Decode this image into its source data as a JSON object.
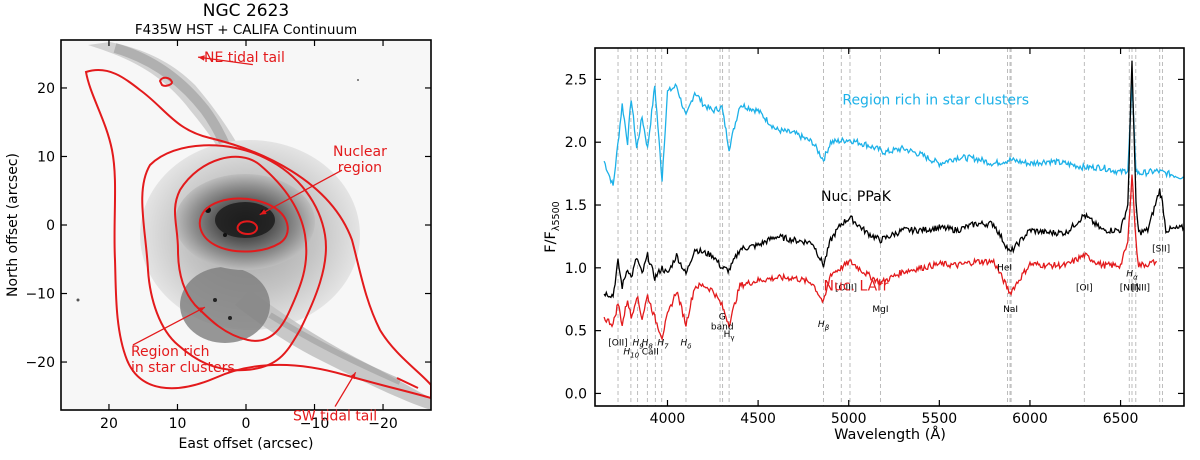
{
  "chart_data": [
    {
      "type": "image-contour",
      "title": "NGC 2623",
      "subtitle": "F435W HST + CALIFA Continuum",
      "xlabel": "East offset (arcsec)",
      "ylabel": "North offset (arcsec)",
      "xlim": [
        27,
        -27
      ],
      "ylim": [
        -27,
        27
      ],
      "xticks": [
        20,
        10,
        0,
        -10,
        -20
      ],
      "xtick_labels": [
        "20",
        "10",
        "0",
        "−10",
        "−20"
      ],
      "yticks": [
        20,
        10,
        0,
        -10,
        -20
      ],
      "ytick_labels": [
        "20",
        "10",
        "0",
        "−10",
        "−20"
      ],
      "annotations": [
        {
          "text": "NE tidal tail",
          "target": [
            7,
            24.5
          ],
          "anchor": [
            -1,
            23.4
          ]
        },
        {
          "text": "Nuclear region",
          "target": [
            -2,
            1.5
          ],
          "anchor": [
            -14,
            8
          ]
        },
        {
          "text": "Region rich in star clusters",
          "target": [
            6,
            -12
          ],
          "anchor": [
            16.5,
            -17.5
          ]
        },
        {
          "text": "SW tidal tail",
          "target": [
            -16,
            -21.5
          ],
          "anchor": [
            -13,
            -26.5
          ]
        }
      ],
      "contour_color": "#e31a1c"
    },
    {
      "type": "line",
      "xlabel": "Wavelength (Å)",
      "ylabel": "F/F",
      "ylabel_sub": "λ5500",
      "xlim": [
        3600,
        6850
      ],
      "ylim": [
        -0.1,
        2.75
      ],
      "xticks": [
        4000,
        4500,
        5000,
        5500,
        6000,
        6500
      ],
      "yticks": [
        0.0,
        0.5,
        1.0,
        1.5,
        2.0,
        2.5
      ],
      "ytick_labels": [
        "0.0",
        "0.5",
        "1.0",
        "1.5",
        "2.0",
        "2.5"
      ],
      "grid": false,
      "series": [
        {
          "name": "Region rich in star clusters",
          "color": "#1db1e8",
          "x": [
            3650,
            3700,
            3720,
            3750,
            3780,
            3800,
            3830,
            3860,
            3890,
            3930,
            3970,
            4000,
            4050,
            4102,
            4150,
            4200,
            4250,
            4300,
            4340,
            4400,
            4500,
            4600,
            4700,
            4800,
            4861,
            4900,
            5000,
            5100,
            5200,
            5300,
            5400,
            5500,
            5600,
            5700,
            5800,
            5890,
            6000,
            6100,
            6200,
            6300,
            6400,
            6500,
            6540,
            6563,
            6585,
            6600,
            6700,
            6850
          ],
          "y": [
            1.85,
            1.65,
            1.9,
            2.3,
            2.0,
            2.35,
            1.95,
            2.2,
            1.95,
            2.45,
            1.7,
            2.4,
            2.45,
            2.2,
            2.4,
            2.3,
            2.25,
            2.28,
            1.95,
            2.3,
            2.25,
            2.1,
            2.07,
            2.0,
            1.86,
            2.0,
            2.02,
            1.98,
            1.92,
            1.95,
            1.9,
            1.83,
            1.88,
            1.87,
            1.83,
            1.86,
            1.83,
            1.85,
            1.83,
            1.8,
            1.8,
            1.76,
            1.78,
            2.45,
            1.78,
            1.75,
            1.77,
            1.72
          ]
        },
        {
          "name": "Nuc. PPaK",
          "color": "#000000",
          "x": [
            3650,
            3700,
            3727,
            3750,
            3780,
            3800,
            3830,
            3860,
            3890,
            3930,
            3970,
            4000,
            4050,
            4102,
            4150,
            4200,
            4250,
            4300,
            4340,
            4400,
            4500,
            4600,
            4700,
            4800,
            4861,
            4900,
            4959,
            5007,
            5100,
            5175,
            5300,
            5400,
            5500,
            5600,
            5700,
            5800,
            5890,
            6000,
            6100,
            6200,
            6300,
            6400,
            6500,
            6540,
            6563,
            6585,
            6600,
            6650,
            6716,
            6731,
            6750,
            6850
          ],
          "y": [
            0.8,
            0.78,
            1.05,
            0.85,
            1.0,
            0.92,
            1.08,
            0.95,
            1.1,
            0.92,
            1.0,
            0.95,
            1.1,
            0.95,
            1.15,
            1.12,
            1.1,
            1.0,
            0.98,
            1.15,
            1.18,
            1.25,
            1.22,
            1.2,
            1.02,
            1.22,
            1.35,
            1.4,
            1.28,
            1.22,
            1.3,
            1.3,
            1.32,
            1.3,
            1.35,
            1.35,
            1.12,
            1.3,
            1.28,
            1.28,
            1.42,
            1.3,
            1.3,
            1.5,
            2.65,
            1.5,
            1.28,
            1.3,
            1.62,
            1.52,
            1.3,
            1.32
          ]
        },
        {
          "name": "Nuc. LArr",
          "color": "#e31a1c",
          "x": [
            3650,
            3700,
            3727,
            3750,
            3780,
            3800,
            3830,
            3860,
            3890,
            3930,
            3970,
            4000,
            4050,
            4102,
            4150,
            4200,
            4250,
            4300,
            4340,
            4400,
            4500,
            4600,
            4700,
            4800,
            4861,
            4900,
            4959,
            5007,
            5100,
            5175,
            5300,
            5400,
            5500,
            5600,
            5700,
            5800,
            5890,
            6000,
            6100,
            6200,
            6300,
            6400,
            6500,
            6540,
            6563,
            6585,
            6600,
            6650,
            6700
          ],
          "y": [
            0.6,
            0.55,
            0.72,
            0.55,
            0.75,
            0.6,
            0.78,
            0.6,
            0.78,
            0.6,
            0.45,
            0.62,
            0.82,
            0.55,
            0.85,
            0.86,
            0.82,
            0.7,
            0.55,
            0.86,
            0.9,
            0.92,
            0.92,
            0.88,
            0.72,
            0.95,
            1.0,
            1.05,
            0.95,
            0.88,
            0.97,
            1.0,
            1.03,
            1.02,
            1.05,
            1.05,
            0.8,
            1.03,
            1.02,
            1.02,
            1.1,
            1.02,
            1.02,
            1.2,
            1.75,
            1.2,
            1.02,
            1.03,
            1.05
          ]
        }
      ],
      "line_markers": [
        3727,
        3798,
        3835,
        3889,
        3933,
        3968,
        4102,
        4290,
        4304,
        4340,
        4861,
        4959,
        5007,
        5175,
        5876,
        5890,
        5896,
        6300,
        6548,
        6563,
        6584,
        6716,
        6731
      ],
      "line_labels": [
        {
          "text": "[OII]",
          "x": 3727,
          "y": 0.38
        },
        {
          "text": "H",
          "sub": "10",
          "x": 3800,
          "y": 0.31,
          "italic": true
        },
        {
          "text": "H",
          "sub": "9",
          "x": 3838,
          "y": 0.38,
          "italic": true
        },
        {
          "text": "H",
          "sub": "8",
          "x": 3888,
          "y": 0.38,
          "italic": true
        },
        {
          "text": "CaII",
          "x": 3905,
          "y": 0.31
        },
        {
          "text": "H",
          "sub": "7",
          "x": 3975,
          "y": 0.38,
          "italic": true
        },
        {
          "text": "H",
          "sub": "δ",
          "x": 4102,
          "y": 0.38,
          "italic": true
        },
        {
          "text": "G",
          "x": 4302,
          "y": 0.59
        },
        {
          "text": "band",
          "x": 4302,
          "y": 0.51
        },
        {
          "text": "H",
          "sub": "γ",
          "x": 4340,
          "y": 0.45
        },
        {
          "text": "H",
          "sub": "β",
          "x": 4861,
          "y": 0.53,
          "italic": true
        },
        {
          "text": "[OIII]",
          "x": 4985,
          "y": 0.82
        },
        {
          "text": "MgI",
          "x": 5175,
          "y": 0.65
        },
        {
          "text": "HeI",
          "x": 5860,
          "y": 0.98
        },
        {
          "text": "NaI",
          "x": 5893,
          "y": 0.65
        },
        {
          "text": "[OI]",
          "x": 6300,
          "y": 0.82
        },
        {
          "text": "H",
          "sub": "α",
          "x": 6563,
          "y": 0.93,
          "italic": true
        },
        {
          "text": "[NII]",
          "x": 6548,
          "y": 0.82
        },
        {
          "text": "[NII]",
          "x": 6610,
          "y": 0.82
        },
        {
          "text": "[SII]",
          "x": 6724,
          "y": 1.13
        }
      ],
      "series_labels": [
        {
          "text": "Region rich in star clusters",
          "x": 5480,
          "y": 2.3,
          "color": "#1db1e8"
        },
        {
          "text": "Nuc. PPaK",
          "x": 5040,
          "y": 1.53,
          "color": "#000000"
        },
        {
          "text": "Nuc. LArr",
          "x": 5040,
          "y": 0.82,
          "color": "#e31a1c"
        }
      ]
    }
  ]
}
